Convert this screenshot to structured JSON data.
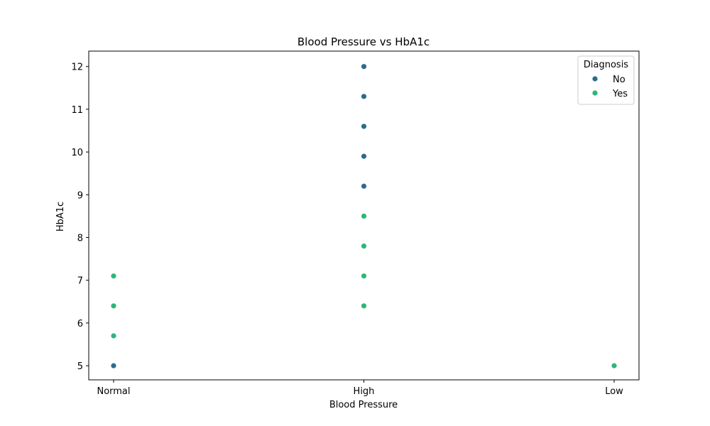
{
  "chart_data": {
    "type": "scatter",
    "title": "Blood Pressure vs HbA1c",
    "xlabel": "Blood Pressure",
    "ylabel": "HbA1c",
    "categories": [
      "Normal",
      "High",
      "Low"
    ],
    "ylim": [
      4.67,
      12.36
    ],
    "yticks": [
      5,
      6,
      7,
      8,
      9,
      10,
      11,
      12
    ],
    "grid": false,
    "legend": {
      "title": "Diagnosis",
      "position": "top-right"
    },
    "series": [
      {
        "name": "No",
        "color": "#2c6b8f",
        "points": [
          {
            "x": "Normal",
            "y": 5.0
          },
          {
            "x": "High",
            "y": 9.2
          },
          {
            "x": "High",
            "y": 9.9
          },
          {
            "x": "High",
            "y": 10.6
          },
          {
            "x": "High",
            "y": 11.3
          },
          {
            "x": "High",
            "y": 12.0
          }
        ]
      },
      {
        "name": "Yes",
        "color": "#2db67b",
        "points": [
          {
            "x": "Normal",
            "y": 5.7
          },
          {
            "x": "Normal",
            "y": 6.4
          },
          {
            "x": "Normal",
            "y": 7.1
          },
          {
            "x": "High",
            "y": 6.4
          },
          {
            "x": "High",
            "y": 7.1
          },
          {
            "x": "High",
            "y": 7.8
          },
          {
            "x": "High",
            "y": 8.5
          },
          {
            "x": "Low",
            "y": 5.0
          }
        ]
      }
    ]
  }
}
